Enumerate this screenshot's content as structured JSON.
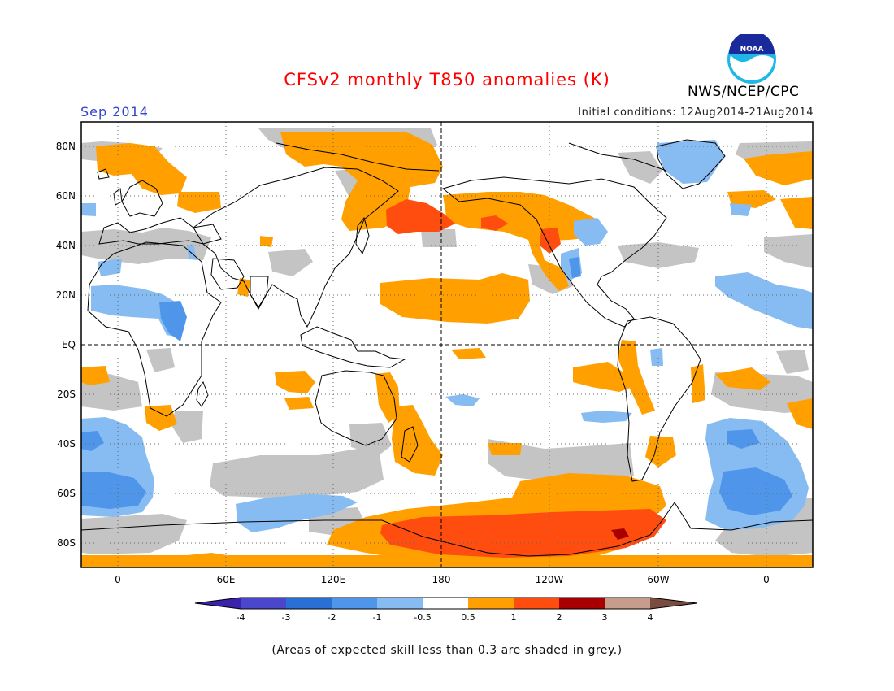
{
  "header": {
    "title": "CFSv2 monthly T850 anomalies (K)",
    "title_color": "#ff0000",
    "month": "Sep 2014",
    "month_color": "#3344cc",
    "initial_conditions": "Initial conditions: 12Aug2014-21Aug2014",
    "agency": "NWS/NCEP/CPC",
    "logo_text": "NOAA",
    "logo_icon": "noaa-logo-icon"
  },
  "map": {
    "lat_labels": [
      "80N",
      "60N",
      "40N",
      "20N",
      "EQ",
      "20S",
      "40S",
      "60S",
      "80S"
    ],
    "lon_labels": [
      "0",
      "60E",
      "120E",
      "180",
      "120W",
      "60W",
      "0"
    ]
  },
  "colorbar": {
    "labels": [
      "-4",
      "-3",
      "-2",
      "-1",
      "-0.5",
      "0.5",
      "1",
      "2",
      "3",
      "4"
    ],
    "colors": [
      "#3a22aa",
      "#4a47cc",
      "#2a6fd6",
      "#4f96ea",
      "#86bcf2",
      "#ffffff",
      "#ffa000",
      "#ff4d10",
      "#a80000",
      "#c69c8c",
      "#7a4c40"
    ]
  },
  "palette": {
    "grey_low_skill": "#c4c4c4",
    "land_outline": "#000000"
  },
  "footnote": "(Areas of expected skill less than 0.3 are shaded in grey.)"
}
